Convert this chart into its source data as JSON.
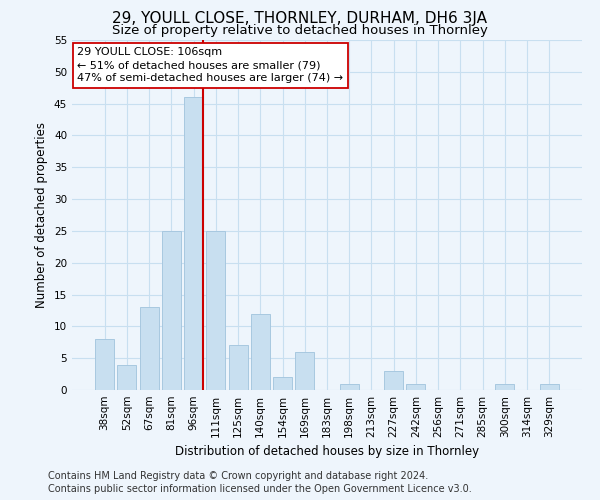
{
  "title": "29, YOULL CLOSE, THORNLEY, DURHAM, DH6 3JA",
  "subtitle": "Size of property relative to detached houses in Thornley",
  "xlabel": "Distribution of detached houses by size in Thornley",
  "ylabel": "Number of detached properties",
  "bar_color": "#c8dff0",
  "bar_edge_color": "#a8c8e0",
  "grid_color": "#c8dff0",
  "background_color": "#eef5fc",
  "bins": [
    "38sqm",
    "52sqm",
    "67sqm",
    "81sqm",
    "96sqm",
    "111sqm",
    "125sqm",
    "140sqm",
    "154sqm",
    "169sqm",
    "183sqm",
    "198sqm",
    "213sqm",
    "227sqm",
    "242sqm",
    "256sqm",
    "271sqm",
    "285sqm",
    "300sqm",
    "314sqm",
    "329sqm"
  ],
  "values": [
    8,
    4,
    13,
    25,
    46,
    25,
    7,
    12,
    2,
    6,
    0,
    1,
    0,
    3,
    1,
    0,
    0,
    0,
    1,
    0,
    1
  ],
  "ylim": [
    0,
    55
  ],
  "yticks": [
    0,
    5,
    10,
    15,
    20,
    25,
    30,
    35,
    40,
    45,
    50,
    55
  ],
  "property_line_bin_index": 4,
  "property_line_color": "#cc0000",
  "annotation_line1": "29 YOULL CLOSE: 106sqm",
  "annotation_line2": "← 51% of detached houses are smaller (79)",
  "annotation_line3": "47% of semi-detached houses are larger (74) →",
  "annotation_box_color": "#ffffff",
  "annotation_box_edge": "#cc0000",
  "footer_line1": "Contains HM Land Registry data © Crown copyright and database right 2024.",
  "footer_line2": "Contains public sector information licensed under the Open Government Licence v3.0.",
  "title_fontsize": 11,
  "subtitle_fontsize": 9.5,
  "axis_label_fontsize": 8.5,
  "tick_fontsize": 7.5,
  "annotation_fontsize": 8,
  "footer_fontsize": 7
}
